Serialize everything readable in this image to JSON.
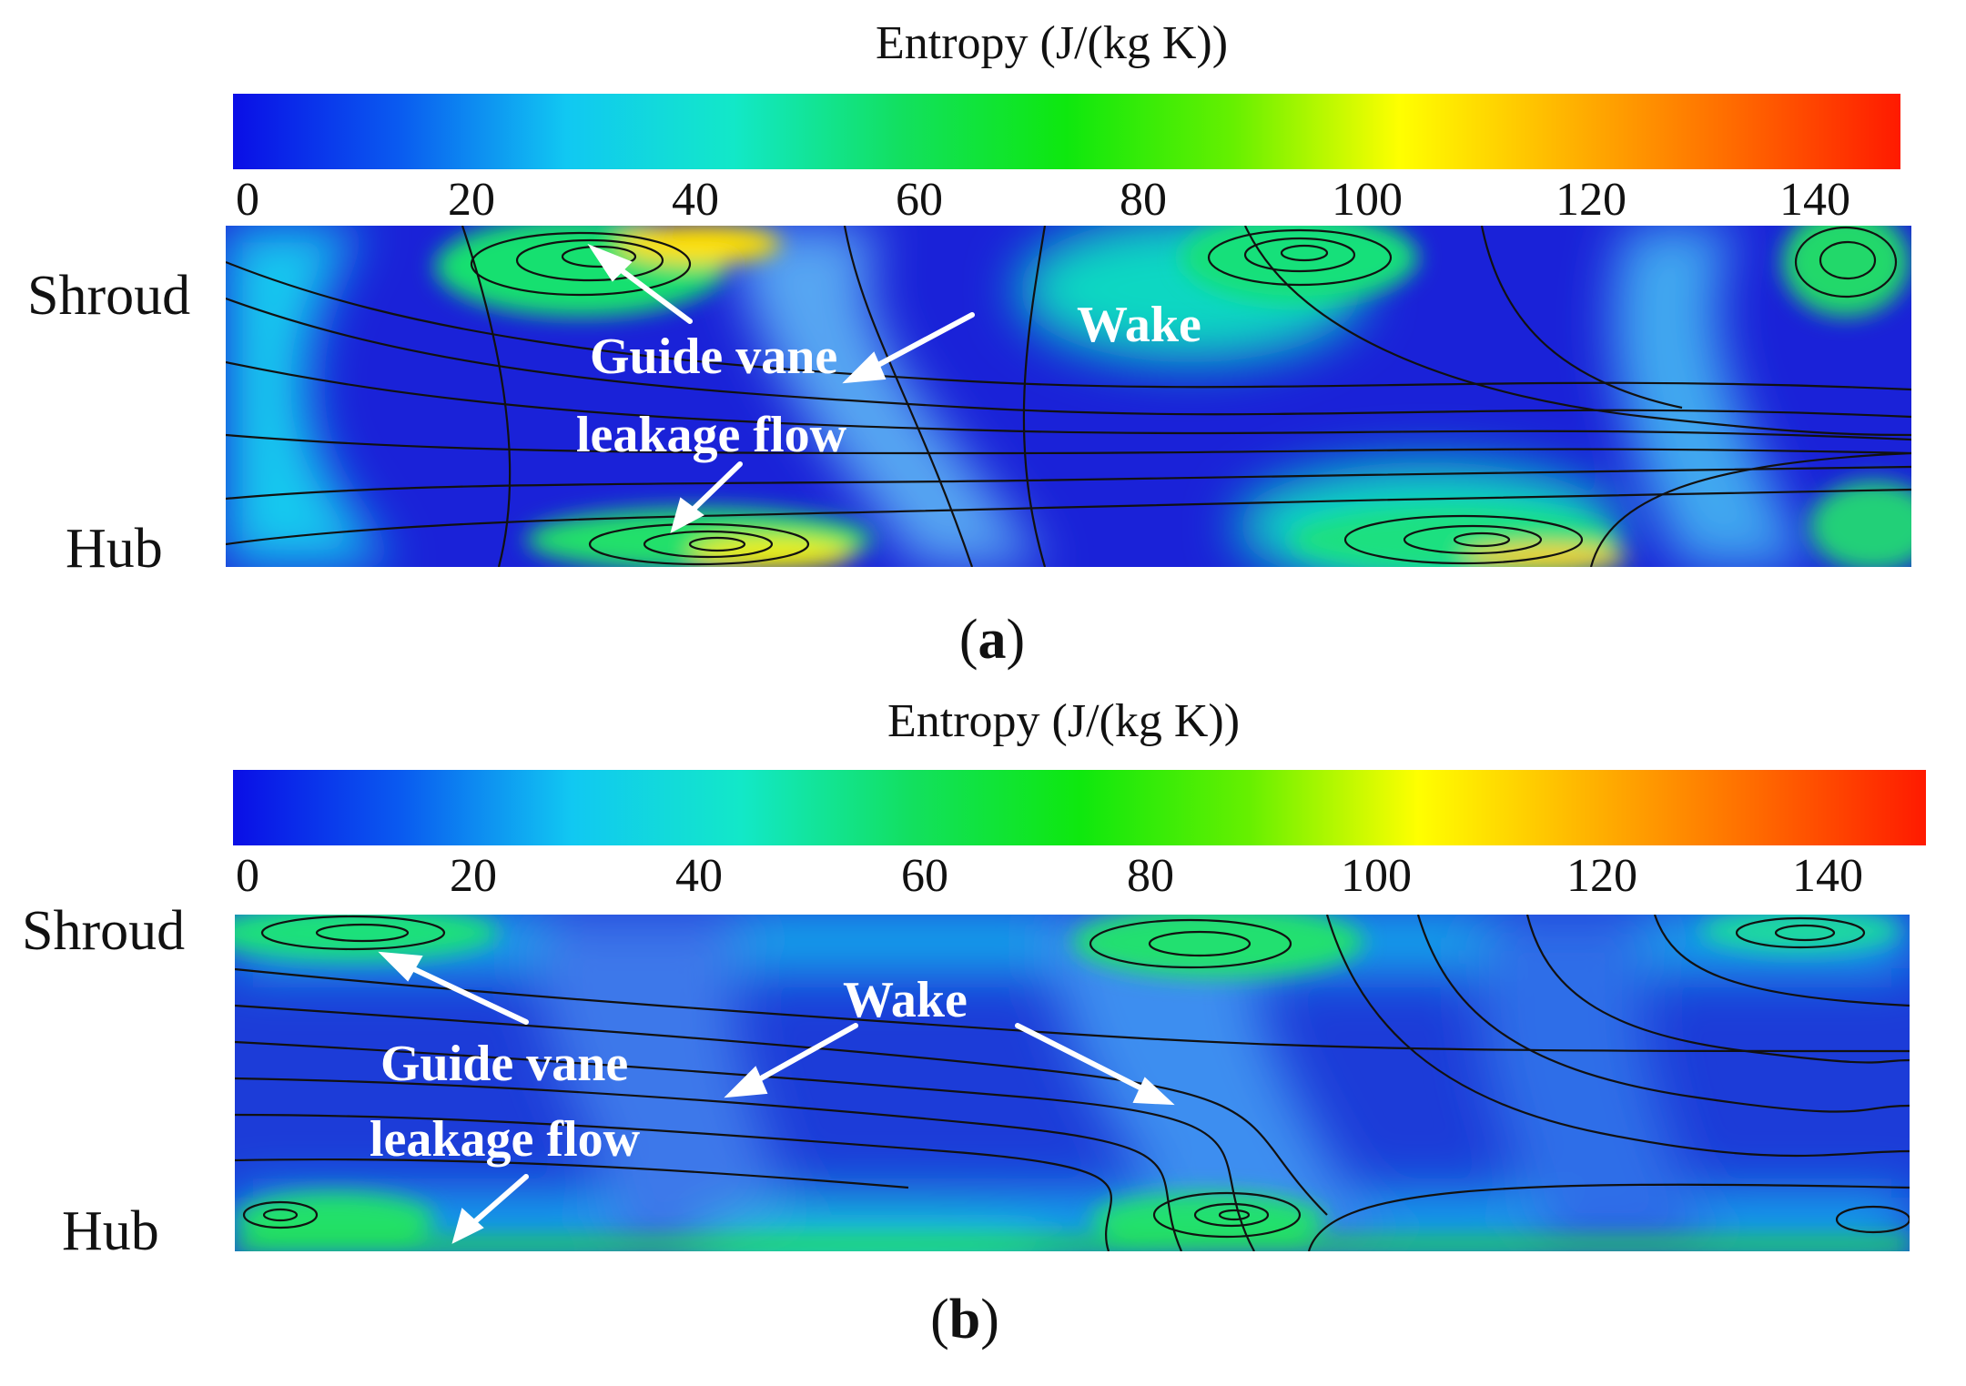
{
  "colorbar": {
    "stops": [
      "#0a0ee6",
      "#0a5bf0",
      "#11c8f2",
      "#12e8c8",
      "#12e060",
      "#0ee80e",
      "#66f000",
      "#ffff00",
      "#ffb400",
      "#ff6a00",
      "#ff1a00"
    ],
    "tick_values": [
      "0",
      "20",
      "40",
      "60",
      "80",
      "100",
      "120",
      "140"
    ]
  },
  "panels": [
    {
      "id": "a",
      "colorbar_title": "Entropy (J/(kg K))",
      "shroud_label": "Shroud",
      "hub_label": "Hub",
      "caption_open": "(",
      "caption_letter": "a",
      "caption_close": ")",
      "annotations": {
        "guide_vane_line1": "Guide vane",
        "guide_vane_line2": "leakage flow",
        "wake": "Wake"
      }
    },
    {
      "id": "b",
      "colorbar_title": "Entropy (J/(kg K))",
      "shroud_label": "Shroud",
      "hub_label": "Hub",
      "caption_open": "(",
      "caption_letter": "b",
      "caption_close": ")",
      "annotations": {
        "guide_vane_line1": "Guide vane",
        "guide_vane_line2": "leakage flow",
        "wake": "Wake"
      }
    }
  ],
  "colors": {
    "field_base": "#1f2fd6",
    "streamline": "#111111",
    "annotation": "#ffffff"
  }
}
